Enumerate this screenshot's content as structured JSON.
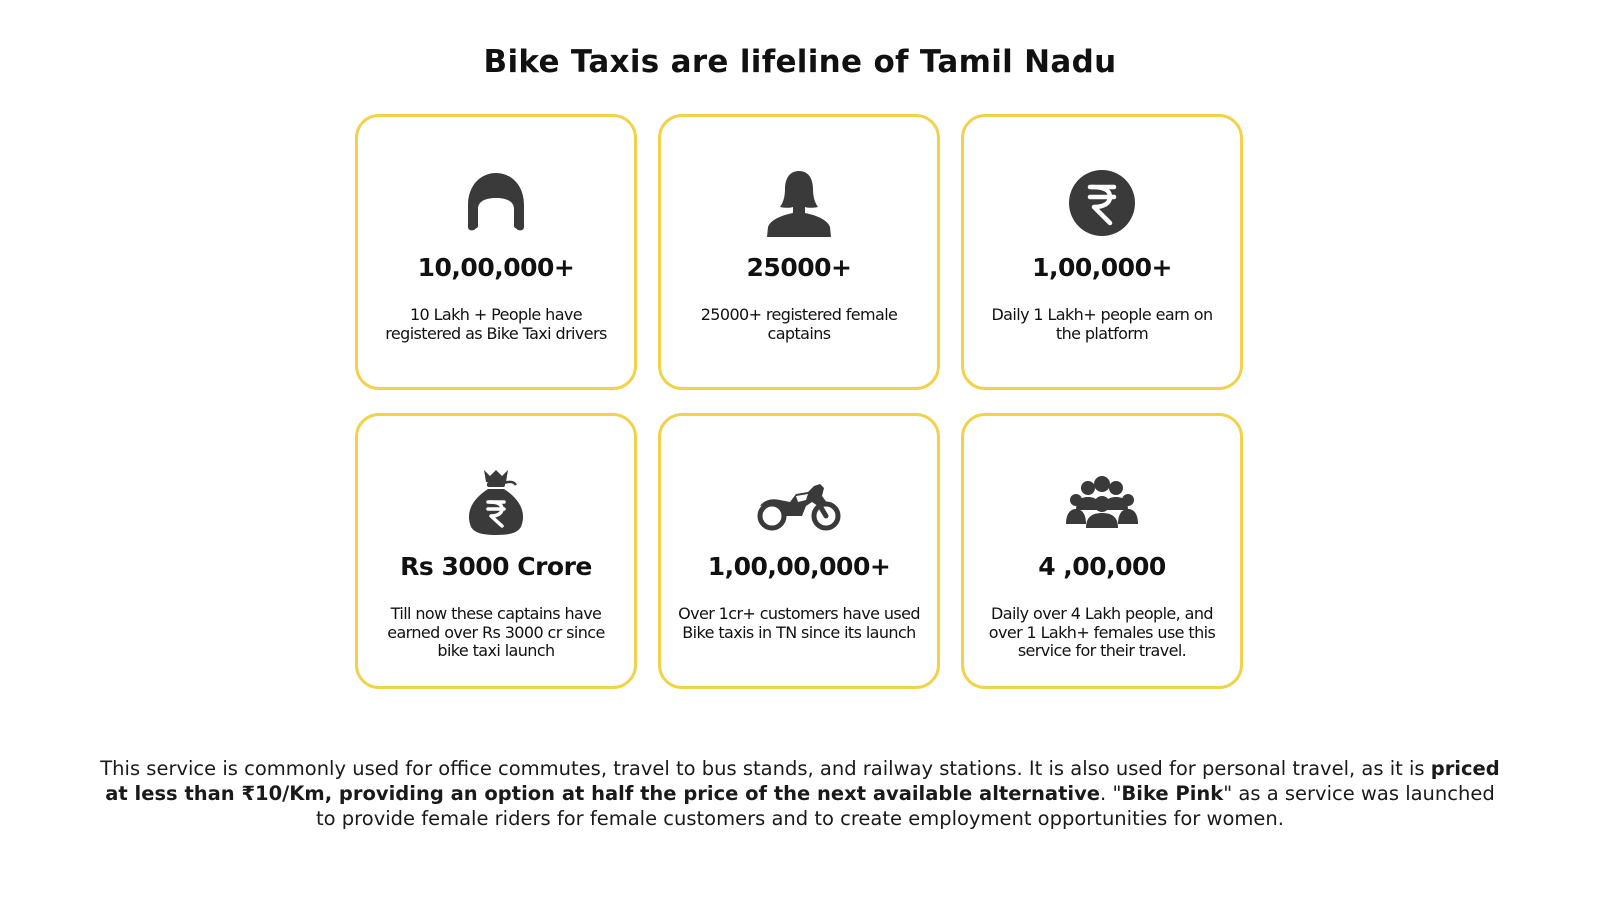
{
  "title": "Bike Taxis are lifeline of Tamil Nadu",
  "colors": {
    "card_border": "#f2d24a",
    "icon": "#3a3a3a",
    "text": "#111111"
  },
  "cards": [
    {
      "icon": "helmet-icon",
      "value": "10,00,000+",
      "description": "10 Lakh + People have registered as Bike Taxi drivers"
    },
    {
      "icon": "female-user-icon",
      "value": "25000+",
      "description": "25000+ registered female captains"
    },
    {
      "icon": "rupee-coin-icon",
      "value": "1,00,000+",
      "description": "Daily 1 Lakh+ people earn on the platform"
    },
    {
      "icon": "money-bag-icon",
      "value": "Rs 3000 Crore",
      "description": "Till now these captains have earned over Rs 3000 cr since bike taxi launch"
    },
    {
      "icon": "motorcycle-icon",
      "value": "1,00,00,000+",
      "description": "Over 1cr+ customers have used Bike taxis in TN since its launch"
    },
    {
      "icon": "people-group-icon",
      "value": "4 ,00,000",
      "description": "Daily over 4 Lakh people, and over 1 Lakh+ females use this service for their travel."
    }
  ],
  "footer": {
    "part1": "This service is commonly used for office commutes, travel to bus stands, and railway stations. It is also used for personal travel, as it is ",
    "bold1": "priced at less than ₹10/Km, providing an option at half the price of the next available alternative",
    "part2": ". \"",
    "bold2": "Bike Pink",
    "part3": "\" as a service was launched to provide female riders for female customers and to create employment opportunities for women."
  }
}
